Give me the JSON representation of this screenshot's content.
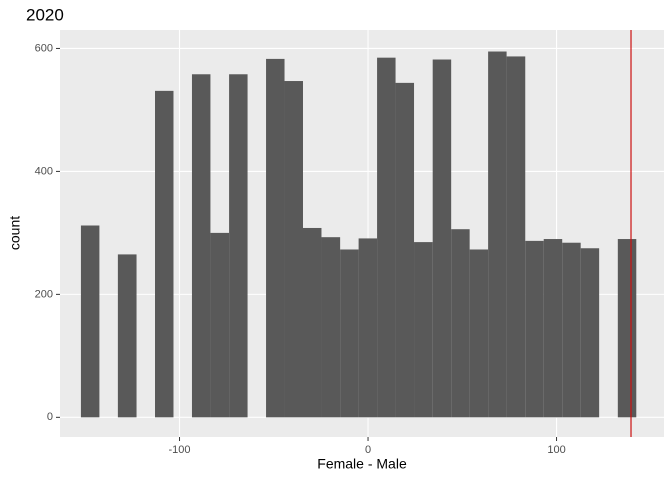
{
  "chart_data": {
    "type": "histogram",
    "title": "2020",
    "x_label": "Female - Male",
    "y_label": "count",
    "bins": [
      -152.3,
      -142.5,
      -132.7,
      -122.8,
      -113.0,
      -103.2,
      -93.4,
      -83.6,
      -73.7,
      -63.9,
      -54.1,
      -44.3,
      -34.5,
      -24.7,
      -14.8,
      -5.0,
      4.8,
      14.6,
      24.4,
      34.3,
      44.1,
      53.9,
      63.7,
      73.5,
      83.4,
      93.2,
      103.0,
      112.8,
      122.6,
      132.5,
      142.3
    ],
    "values": [
      312,
      0,
      265,
      0,
      531,
      0,
      558,
      300,
      558,
      0,
      583,
      547,
      308,
      293,
      273,
      291,
      585,
      544,
      285,
      582,
      306,
      273,
      595,
      587,
      287,
      290,
      284,
      275,
      0,
      290
    ],
    "color": "#595959",
    "xlim": [
      -163.4,
      157
    ],
    "ylim": [
      -32,
      630
    ],
    "xticks": [
      -100,
      0,
      100
    ],
    "yticks": [
      0,
      200,
      400,
      600
    ],
    "grid": true,
    "reference_line": {
      "x": 139.5,
      "color": "#cc1111"
    }
  }
}
